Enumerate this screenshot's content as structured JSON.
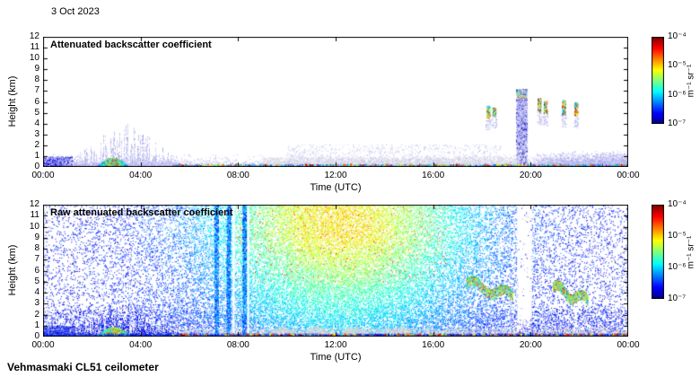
{
  "date_label": "3 Oct 2023",
  "footer_label": "Vehmasmaki CL51 ceilometer",
  "background_color": "#ffffff",
  "chart_data": [
    {
      "type": "heatmap",
      "title": "Attenuated backscatter coefficient",
      "xlabel": "Time (UTC)",
      "ylabel": "Height (km)",
      "x_ticks": [
        "00:00",
        "04:00",
        "08:00",
        "12:00",
        "16:00",
        "20:00",
        "00:00"
      ],
      "x_range_hours": [
        0,
        24
      ],
      "y_ticks": [
        0,
        1,
        2,
        3,
        4,
        5,
        6,
        7,
        8,
        9,
        10,
        11,
        12
      ],
      "ylim_km": [
        0,
        12
      ],
      "grid": false,
      "colorbar": {
        "scale": "log",
        "ticks": [
          "10⁻⁴",
          "10⁻⁵",
          "10⁻⁶",
          "10⁻⁷"
        ],
        "unit": "m⁻¹ sr⁻¹",
        "colormap": "jet",
        "range": [
          "1e-7",
          "1e-4"
        ]
      },
      "features": {
        "boundary_aerosol": {
          "time": [
            0,
            24
          ],
          "scale_km": 0.3
        },
        "morning_plumes": {
          "time": [
            1.0,
            5.6
          ],
          "max_top_km": 4.0
        },
        "fog_patch": {
          "time": [
            2.2,
            3.5
          ],
          "top_km": 0.85
        },
        "midday_gray_band": {
          "time": [
            9.0,
            20.0
          ],
          "top_km": 0.9
        },
        "afternoon_speckle": {
          "time": [
            10.0,
            18.8
          ],
          "top_km": 2.1
        },
        "surface_returns": {
          "time": [
            5.3,
            24.0
          ],
          "height_km": 0.3
        },
        "precip_column": {
          "time": [
            19.4,
            19.85
          ],
          "top_km": 7.2
        },
        "high_clouds": [
          {
            "time": 18.25,
            "base_km": 4.6,
            "top_km": 5.7
          },
          {
            "time": 18.5,
            "base_km": 4.8,
            "top_km": 5.5
          },
          {
            "time": 20.35,
            "base_km": 5.1,
            "top_km": 6.4
          },
          {
            "time": 20.6,
            "base_km": 5.0,
            "top_km": 6.1
          },
          {
            "time": 21.35,
            "base_km": 4.9,
            "top_km": 6.2
          },
          {
            "time": 21.85,
            "base_km": 4.8,
            "top_km": 6.0
          }
        ],
        "evening_aerosol": {
          "time": [
            20.2,
            24.0
          ],
          "top_km": 1.6
        }
      }
    },
    {
      "type": "heatmap",
      "title": "Raw attenuated backscatter coefficient",
      "xlabel": "Time (UTC)",
      "ylabel": "Height (km)",
      "x_ticks": [
        "00:00",
        "04:00",
        "08:00",
        "12:00",
        "16:00",
        "20:00",
        "00:00"
      ],
      "x_range_hours": [
        0,
        24
      ],
      "y_ticks": [
        0,
        1,
        2,
        3,
        4,
        5,
        6,
        7,
        8,
        9,
        10,
        11,
        12
      ],
      "ylim_km": [
        0,
        12
      ],
      "grid": false,
      "colorbar": {
        "scale": "log",
        "ticks": [
          "10⁻⁴",
          "10⁻⁵",
          "10⁻⁶",
          "10⁻⁷"
        ],
        "unit": "m⁻¹ sr⁻¹",
        "colormap": "jet",
        "range": [
          "1e-7",
          "1e-4"
        ]
      },
      "features": {
        "solar_noise": {
          "peak_hour": 12.2,
          "width_h": 5.6
        },
        "morning_plumes": {
          "time": [
            1.0,
            5.6
          ],
          "top_km": 2.8
        },
        "fog_patch": {
          "time": [
            2.2,
            3.6
          ],
          "top_km": 0.9
        },
        "night_low_speckle": {
          "time": [
            0,
            1.3
          ],
          "top_km": 1.0
        },
        "vertical_streaks": [
          7.1,
          7.6,
          8.25
        ],
        "white_gaps": [
          [
            19.45,
            20.05
          ],
          [
            7.78,
            7.86
          ],
          [
            8.38,
            8.45
          ]
        ],
        "cloud_arcs": [
          {
            "time": [
              17.35,
              19.25
            ],
            "km": [
              5.3,
              4.1
            ]
          },
          {
            "time": [
              20.9,
              22.35
            ],
            "km": [
              4.9,
              3.6
            ]
          }
        ],
        "gray_mounds": [
          9.8,
          11.2,
          12.8,
          14.6
        ],
        "surface_band_km": 0.8,
        "surface_returns": {
          "time": [
            5.3,
            24.0
          ],
          "height_km": 0.3
        }
      }
    }
  ]
}
